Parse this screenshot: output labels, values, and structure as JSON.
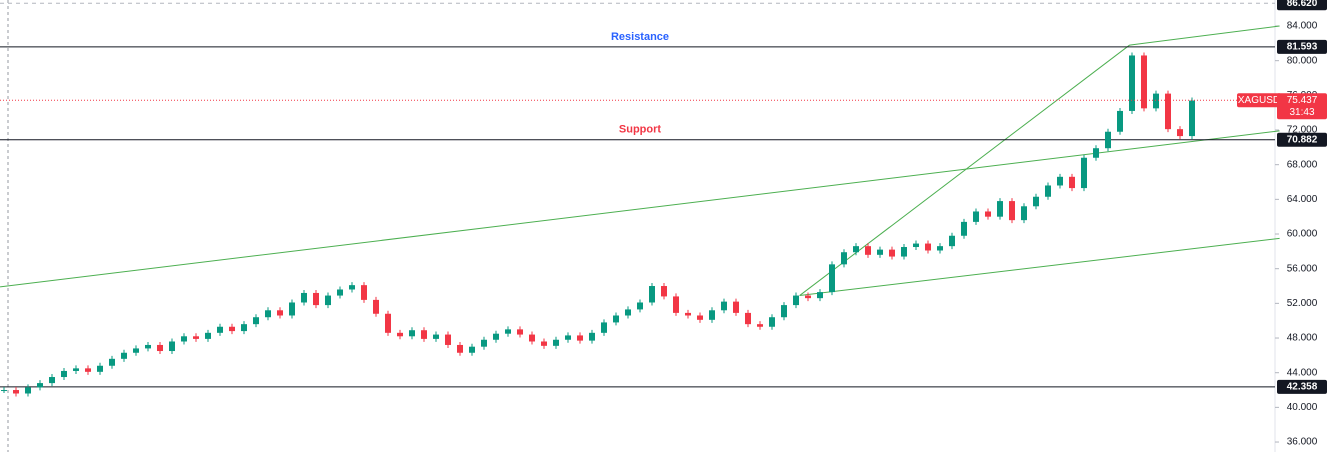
{
  "chart_data": {
    "type": "candlestick",
    "symbol": "XAGUSD",
    "values": [
      42.0,
      41.6,
      42.3,
      42.8,
      43.5,
      44.2,
      44.5,
      44.1,
      44.8,
      45.6,
      46.3,
      46.8,
      47.2,
      46.5,
      47.6,
      48.2,
      47.9,
      48.6,
      49.3,
      48.8,
      49.6,
      50.4,
      51.2,
      50.6,
      52.1,
      53.2,
      51.8,
      52.9,
      53.6,
      54.1,
      52.4,
      50.8,
      48.6,
      48.2,
      48.9,
      47.9,
      48.4,
      47.2,
      46.3,
      47.0,
      47.8,
      48.5,
      49.0,
      48.4,
      47.6,
      47.1,
      47.8,
      48.3,
      47.7,
      48.6,
      49.8,
      50.6,
      51.3,
      52.1,
      54.0,
      52.8,
      50.9,
      50.6,
      50.1,
      51.2,
      52.2,
      50.9,
      49.6,
      49.3,
      50.4,
      51.8,
      52.9,
      52.6,
      53.3,
      56.5,
      57.9,
      58.6,
      57.6,
      58.2,
      57.4,
      58.5,
      58.9,
      58.1,
      58.6,
      59.8,
      61.4,
      62.6,
      62.0,
      63.8,
      61.6,
      63.2,
      64.3,
      65.6,
      66.6,
      65.3,
      68.8,
      69.9,
      71.8,
      74.2,
      80.6,
      74.5,
      76.2,
      72.1,
      71.3,
      75.4
    ],
    "up_color": "#089981",
    "down_color": "#f23645",
    "ylim": [
      34.85,
      87.0
    ],
    "yticks": [
      {
        "value": 36,
        "label": "36.000"
      },
      {
        "value": 40,
        "label": "40.000"
      },
      {
        "value": 44,
        "label": "44.000"
      },
      {
        "value": 48,
        "label": "48.000"
      },
      {
        "value": 52,
        "label": "52.000"
      },
      {
        "value": 56,
        "label": "56.000"
      },
      {
        "value": 60,
        "label": "60.000"
      },
      {
        "value": 64,
        "label": "64.000"
      },
      {
        "value": 68,
        "label": "68.000"
      },
      {
        "value": 72,
        "label": "72.000"
      },
      {
        "value": 76,
        "label": "76.000"
      },
      {
        "value": 80,
        "label": "80.000"
      },
      {
        "value": 84,
        "label": "84.000"
      }
    ],
    "levels": [
      {
        "value": 86.62,
        "label": "86.620"
      },
      {
        "value": 81.593,
        "label": "81.593"
      },
      {
        "value": 70.882,
        "label": "70.882"
      },
      {
        "value": 42.358,
        "label": "42.358"
      }
    ],
    "annotations": [
      {
        "text": "Resistance",
        "color": "#2962ff",
        "level": 81.593
      },
      {
        "text": "Support",
        "color": "#f23645",
        "level": 70.882
      }
    ],
    "trend_lines": [
      {
        "from": [
          -0.33,
          53.9
        ],
        "to": [
          106.3,
          71.9
        ]
      },
      {
        "from": [
          66.3,
          52.9
        ],
        "to": [
          106.3,
          59.5
        ]
      },
      {
        "from": [
          66.3,
          52.9
        ],
        "to": [
          93.8,
          81.8
        ]
      },
      {
        "from": [
          93.8,
          81.8
        ],
        "to": [
          106.3,
          84.0
        ]
      }
    ],
    "trend_color": "#4caf50",
    "last_price": {
      "value": 75.437,
      "label": "75.437",
      "countdown": "31:43",
      "color": "#f23645"
    }
  }
}
